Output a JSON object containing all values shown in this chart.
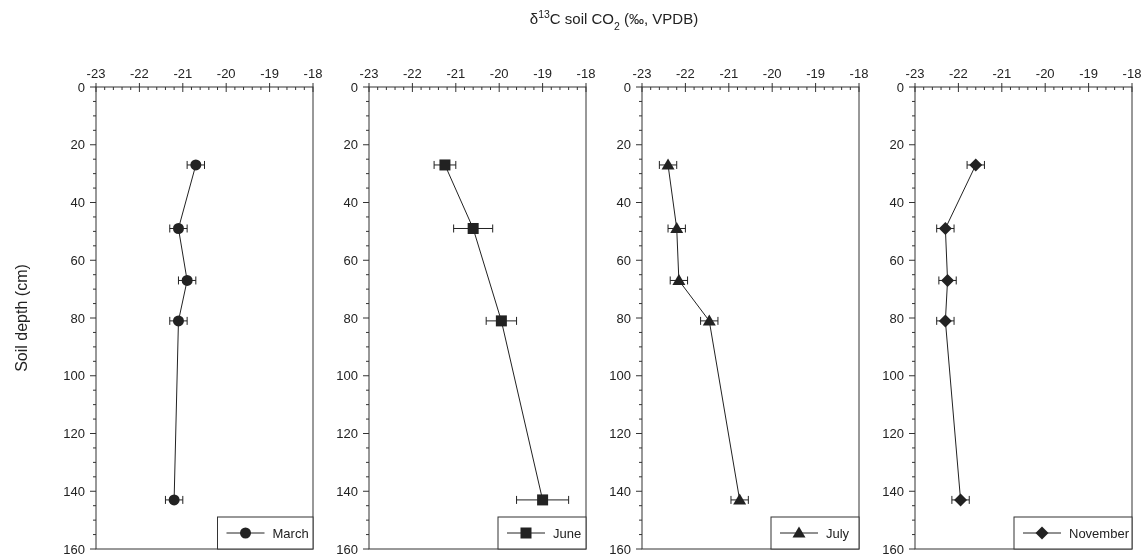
{
  "chart_data": [
    {
      "type": "line",
      "ylabel": "Soil depth (cm)",
      "xlim": [
        -23,
        -18
      ],
      "ylim": [
        160,
        0
      ],
      "xticks": [
        -23,
        -22,
        -21,
        -20,
        -19,
        -18
      ],
      "yticks": [
        0,
        20,
        40,
        60,
        80,
        100,
        120,
        140,
        160
      ],
      "marker": "circle",
      "line_style": "solid",
      "legend": "bottom right",
      "series": [
        {
          "name": "March",
          "color": "#222222",
          "x": [
            -20.7,
            -21.1,
            -20.9,
            -21.1,
            -21.2
          ],
          "values": [
            27,
            49,
            67,
            81,
            143
          ],
          "xerrors": [
            0.2,
            0.2,
            0.2,
            0.2,
            0.2
          ]
        }
      ]
    },
    {
      "type": "line",
      "xlabel": "δ$^{13}$C soil CO$_{2}$ (‰, VPDB)",
      "xlim": [
        -23,
        -18
      ],
      "ylim": [
        160,
        0
      ],
      "xticks": [
        -23,
        -22,
        -21,
        -20,
        -19,
        -18
      ],
      "yticks": [
        0,
        20,
        40,
        60,
        80,
        100,
        120,
        140,
        160
      ],
      "marker": "square",
      "line_style": "solid",
      "legend": "bottom right",
      "series": [
        {
          "name": "June",
          "color": "#222222",
          "x": [
            -21.25,
            -20.6,
            -19.95,
            -19.0
          ],
          "values": [
            27,
            49,
            81,
            143
          ],
          "xerrors": [
            0.25,
            0.45,
            0.35,
            0.6
          ]
        }
      ]
    },
    {
      "type": "line",
      "xlim": [
        -23,
        -18
      ],
      "ylim": [
        160,
        0
      ],
      "xticks": [
        -23,
        -22,
        -21,
        -20,
        -19,
        -18
      ],
      "yticks": [
        0,
        20,
        40,
        60,
        80,
        100,
        120,
        140,
        160
      ],
      "marker": "triangle",
      "line_style": "solid",
      "legend": "bottom right",
      "series": [
        {
          "name": "July",
          "color": "#222222",
          "x": [
            -22.4,
            -22.2,
            -22.15,
            -21.45,
            -20.75
          ],
          "values": [
            27,
            49,
            67,
            81,
            143
          ],
          "xerrors": [
            0.2,
            0.2,
            0.2,
            0.2,
            0.2
          ]
        }
      ]
    },
    {
      "type": "line",
      "xlim": [
        -23,
        -18
      ],
      "ylim": [
        160,
        0
      ],
      "xticks": [
        -23,
        -22,
        -21,
        -20,
        -19,
        -18
      ],
      "yticks": [
        0,
        20,
        40,
        60,
        80,
        100,
        120,
        140,
        160
      ],
      "marker": "diamond",
      "line_style": "solid",
      "legend": "bottom right",
      "series": [
        {
          "name": "November",
          "color": "#222222",
          "x": [
            -21.6,
            -22.3,
            -22.25,
            -22.3,
            -21.95
          ],
          "values": [
            27,
            49,
            67,
            81,
            143
          ],
          "xerrors": [
            0.2,
            0.2,
            0.2,
            0.2,
            0.2
          ]
        }
      ]
    }
  ]
}
